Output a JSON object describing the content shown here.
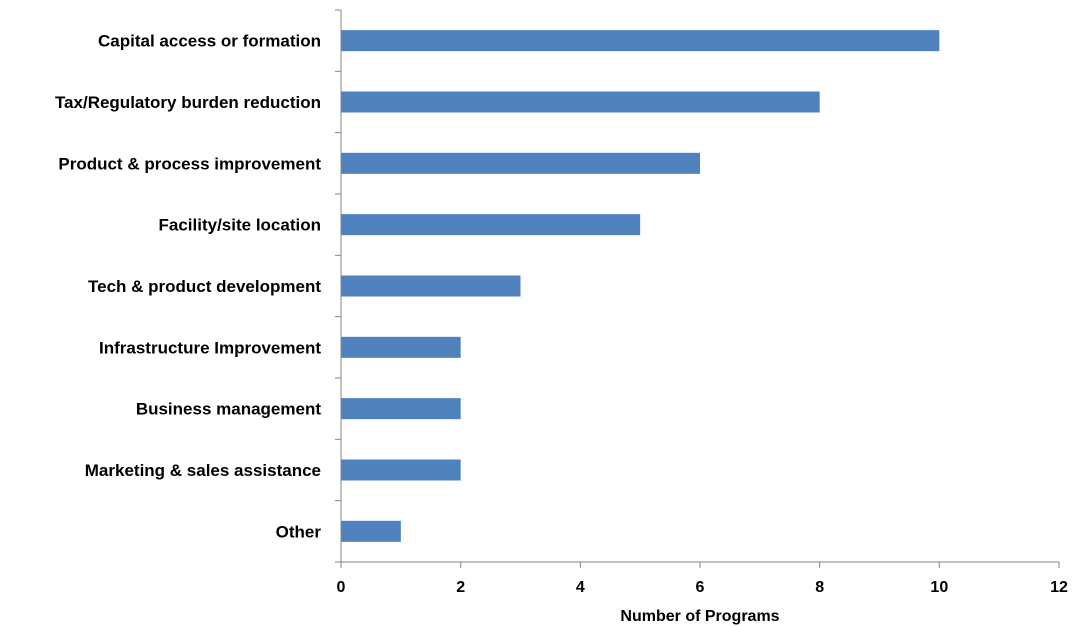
{
  "chart_data": {
    "type": "bar",
    "orientation": "horizontal",
    "categories": [
      "Capital access or formation",
      "Tax/Regulatory burden reduction",
      "Product & process improvement",
      "Facility/site location",
      "Tech & product development",
      "Infrastructure Improvement",
      "Business management",
      "Marketing & sales assistance",
      "Other"
    ],
    "values": [
      10,
      8,
      6,
      5,
      3,
      2,
      2,
      2,
      1
    ],
    "xlabel": "Number of Programs",
    "ylabel": "",
    "xlim": [
      0,
      12
    ],
    "xticks": [
      0,
      2,
      4,
      6,
      8,
      10,
      12
    ],
    "grid": false,
    "legend": "none",
    "bar_color": "#4F81BD"
  }
}
